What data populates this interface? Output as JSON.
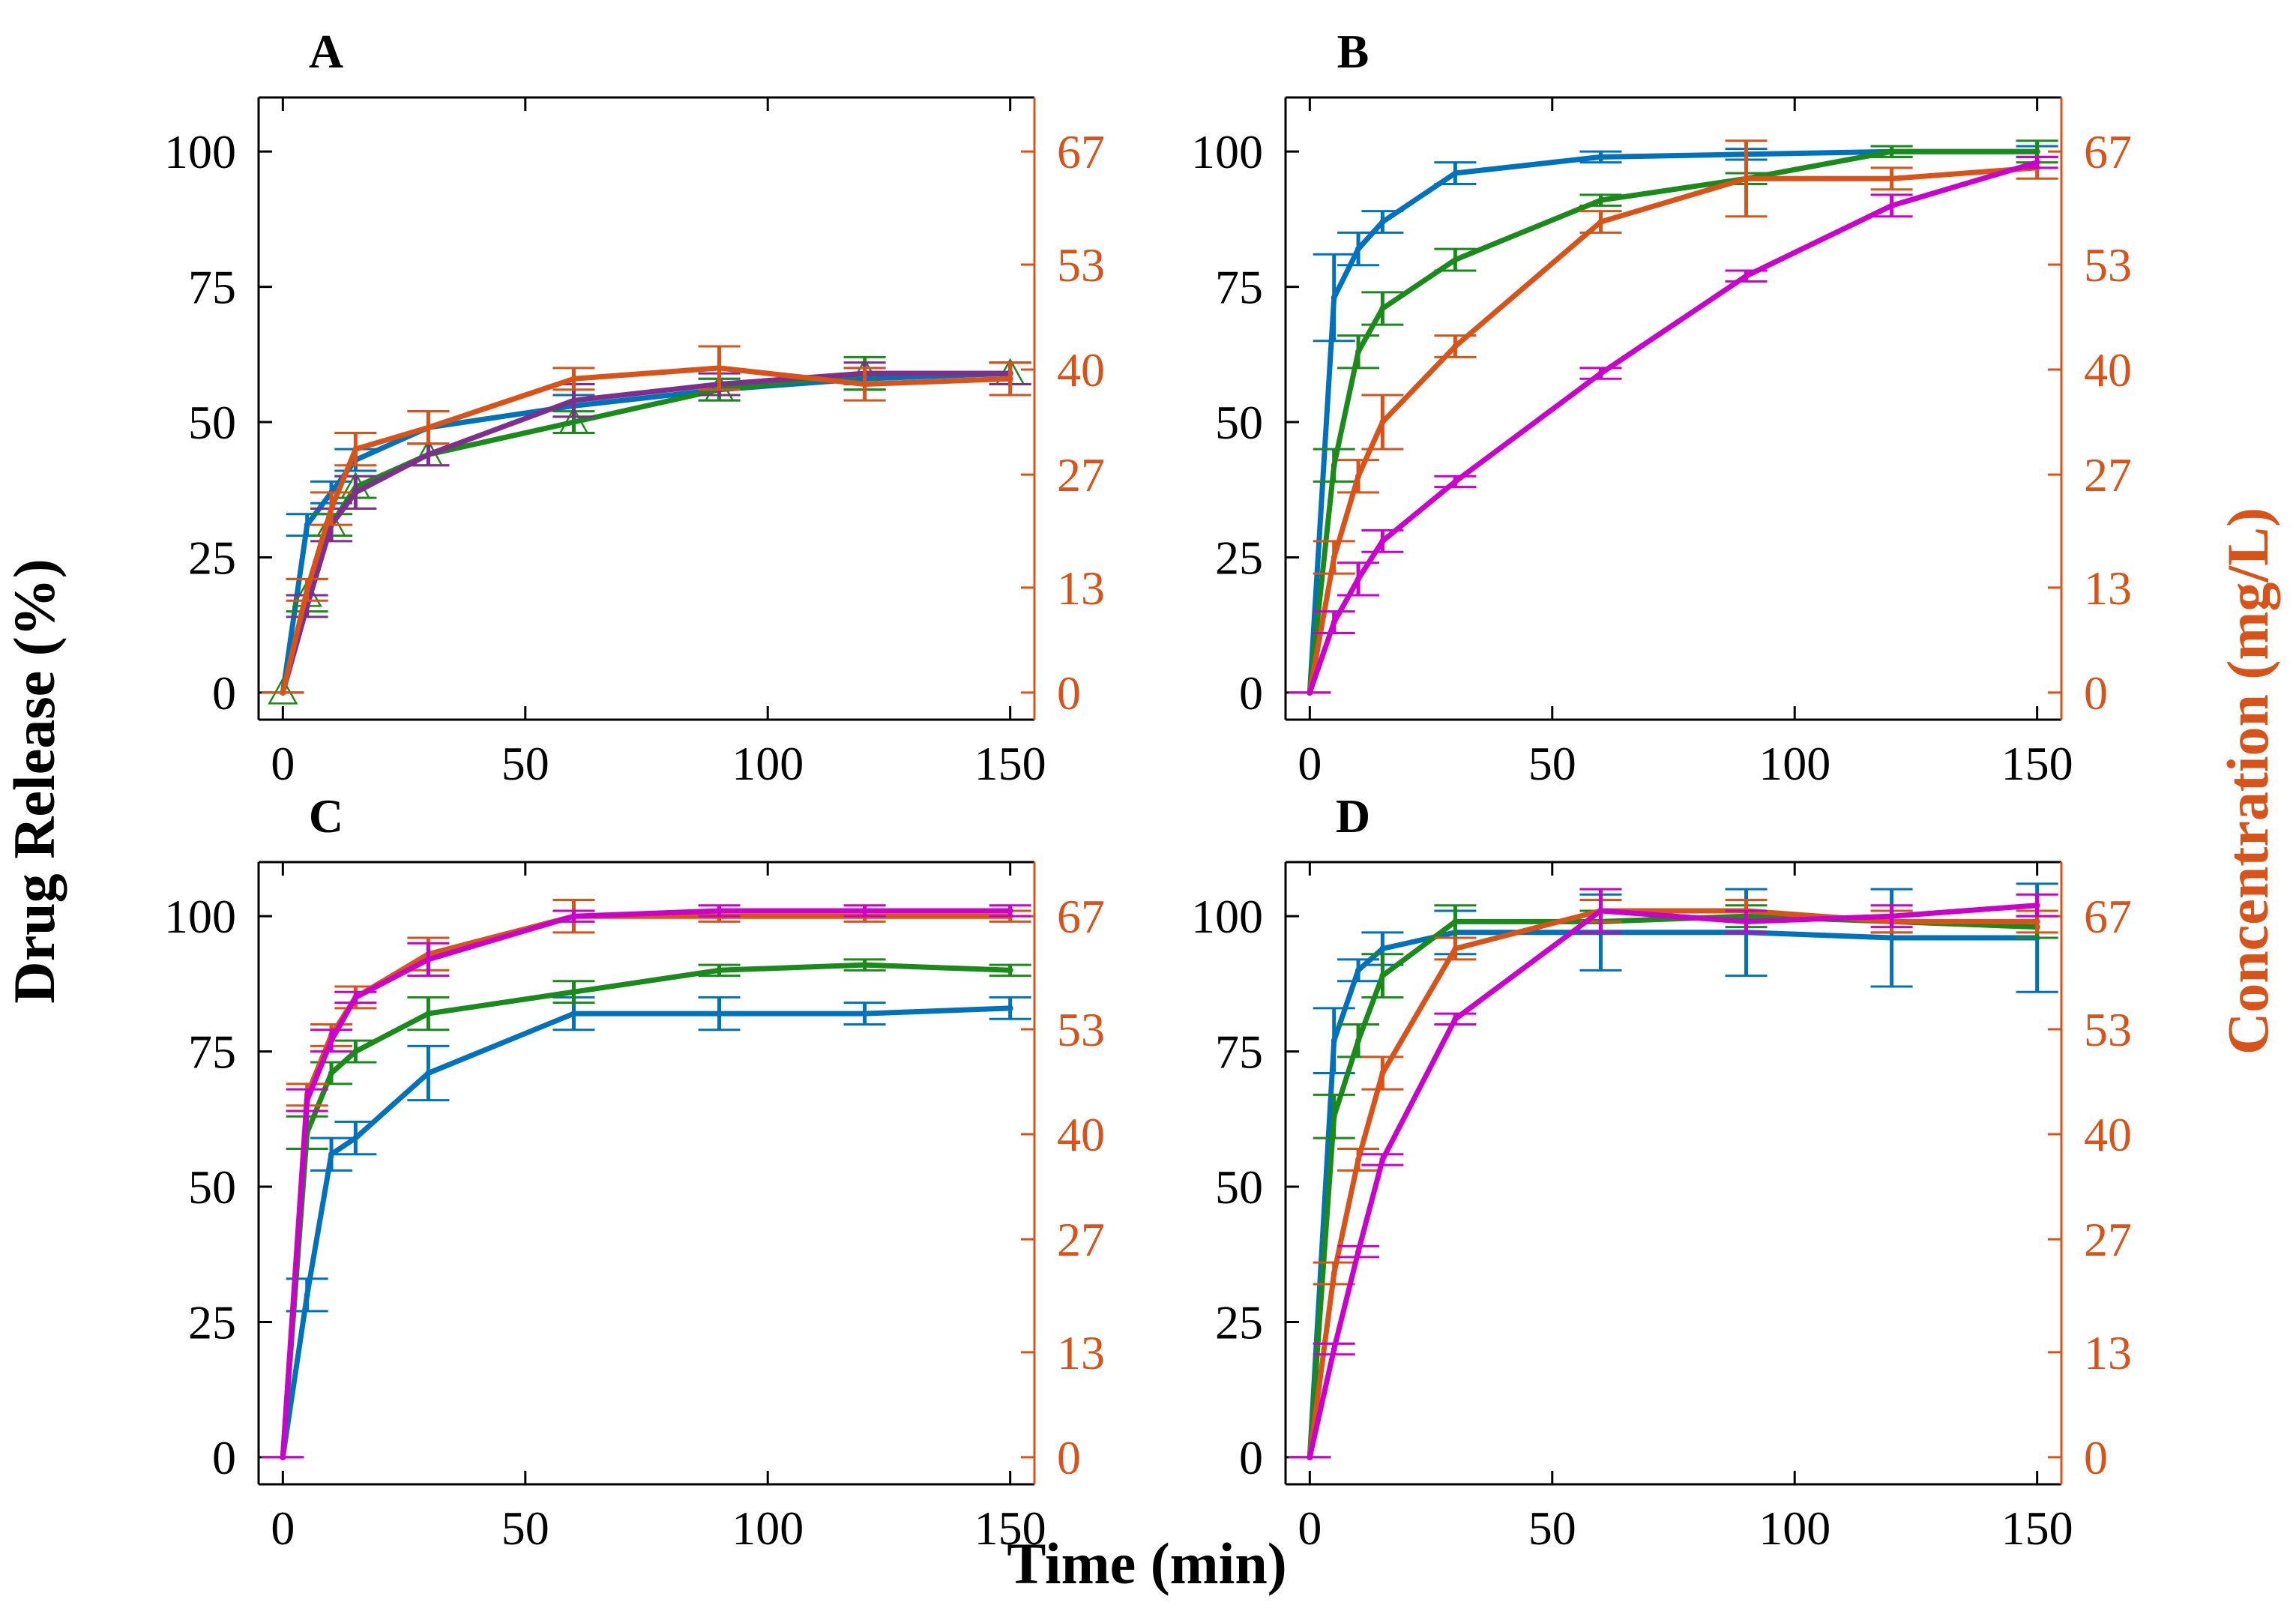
{
  "figure": {
    "xlabel": "Time (min)",
    "ylabel_left": "Drug Release (%)",
    "ylabel_right": "Concentration (mg/L)",
    "colors": {
      "axis": "#000000",
      "right_axis": "#d95319",
      "blue": "#0072bd",
      "orange": "#d95319",
      "green": "#1a8a1a",
      "magenta": "#cc00cc",
      "purple": "#7e2f8e"
    }
  },
  "chart_data": [
    {
      "type": "line",
      "panel": "A",
      "title": "A",
      "xlim": [
        -5,
        155
      ],
      "ylim": [
        -5,
        110
      ],
      "xticks": [
        "0",
        "50",
        "100",
        "150"
      ],
      "yticks_left": [
        "0",
        "25",
        "50",
        "75",
        "100"
      ],
      "yticks_right": [
        "0",
        "13",
        "27",
        "40",
        "53",
        "67"
      ],
      "x": [
        0,
        5,
        10,
        15,
        30,
        60,
        90,
        120,
        150
      ],
      "series": [
        {
          "name": "blue",
          "color": "#0072bd",
          "values": [
            0,
            31,
            37,
            43,
            49,
            53,
            56,
            58,
            59
          ],
          "errors": [
            0,
            2,
            2,
            2,
            3,
            2,
            2,
            2,
            2
          ]
        },
        {
          "name": "green",
          "color": "#1a8a1a",
          "marker": "triangle",
          "values": [
            0,
            18,
            31,
            38,
            44,
            50,
            56,
            59,
            59
          ],
          "errors": [
            0,
            3,
            2,
            2,
            2,
            2,
            2,
            3,
            2
          ]
        },
        {
          "name": "purple",
          "color": "#7e2f8e",
          "values": [
            0,
            16,
            31,
            37,
            44,
            54,
            57,
            59,
            59
          ],
          "errors": [
            0,
            2,
            3,
            3,
            2,
            3,
            2,
            2,
            2
          ]
        },
        {
          "name": "orange",
          "color": "#d95319",
          "values": [
            0,
            19,
            34,
            45,
            49,
            58,
            60,
            57,
            58
          ],
          "errors": [
            0,
            2,
            3,
            3,
            3,
            2,
            4,
            3,
            3
          ]
        }
      ]
    },
    {
      "type": "line",
      "panel": "B",
      "title": "B",
      "xlim": [
        -5,
        155
      ],
      "ylim": [
        -5,
        110
      ],
      "xticks": [
        "0",
        "50",
        "100",
        "150"
      ],
      "yticks_left": [
        "0",
        "25",
        "50",
        "75",
        "100"
      ],
      "yticks_right": [
        "0",
        "13",
        "27",
        "40",
        "53",
        "67"
      ],
      "x": [
        0,
        5,
        10,
        15,
        30,
        60,
        90,
        120,
        150
      ],
      "series": [
        {
          "name": "blue",
          "color": "#0072bd",
          "values": [
            0,
            73,
            82,
            87,
            96,
            99,
            99.5,
            100,
            100
          ],
          "errors": [
            0,
            8,
            3,
            2,
            2,
            1,
            1,
            1,
            1
          ]
        },
        {
          "name": "green",
          "color": "#1a8a1a",
          "values": [
            0,
            42,
            63,
            71,
            80,
            91,
            95,
            100,
            100
          ],
          "errors": [
            0,
            3,
            3,
            3,
            2,
            1,
            1,
            1,
            2
          ]
        },
        {
          "name": "orange",
          "color": "#d95319",
          "values": [
            0,
            25,
            40,
            50,
            64,
            87,
            95,
            95,
            97
          ],
          "errors": [
            0,
            3,
            3,
            5,
            2,
            2,
            7,
            2,
            2
          ]
        },
        {
          "name": "magenta",
          "color": "#cc00cc",
          "values": [
            0,
            13,
            21,
            28,
            39,
            59,
            77,
            90,
            98
          ],
          "errors": [
            0,
            2,
            3,
            2,
            1,
            1,
            1,
            2,
            1
          ]
        }
      ]
    },
    {
      "type": "line",
      "panel": "C",
      "title": "C",
      "xlim": [
        -5,
        155
      ],
      "ylim": [
        -5,
        110
      ],
      "xticks": [
        "0",
        "50",
        "100",
        "150"
      ],
      "yticks_left": [
        "0",
        "25",
        "50",
        "75",
        "100"
      ],
      "yticks_right": [
        "0",
        "13",
        "27",
        "40",
        "53",
        "67"
      ],
      "x": [
        0,
        5,
        10,
        15,
        30,
        60,
        90,
        120,
        150
      ],
      "series": [
        {
          "name": "blue",
          "color": "#0072bd",
          "values": [
            0,
            30,
            56,
            59,
            71,
            82,
            82,
            82,
            83
          ],
          "errors": [
            0,
            3,
            3,
            3,
            5,
            3,
            3,
            2,
            2
          ]
        },
        {
          "name": "green",
          "color": "#1a8a1a",
          "values": [
            0,
            60,
            71,
            75,
            82,
            86,
            90,
            91,
            90
          ],
          "errors": [
            0,
            3,
            2,
            2,
            3,
            2,
            1,
            1,
            1
          ]
        },
        {
          "name": "orange",
          "color": "#d95319",
          "values": [
            0,
            67,
            78,
            85,
            93,
            100,
            100,
            100,
            100
          ],
          "errors": [
            0,
            2,
            2,
            2,
            3,
            3,
            1,
            1,
            1
          ]
        },
        {
          "name": "magenta",
          "color": "#cc00cc",
          "values": [
            0,
            66,
            77,
            85,
            92,
            100,
            101,
            101,
            101
          ],
          "errors": [
            0,
            2,
            2,
            1,
            3,
            1,
            1,
            1,
            1
          ]
        }
      ]
    },
    {
      "type": "line",
      "panel": "D",
      "title": "D",
      "xlim": [
        -5,
        155
      ],
      "ylim": [
        -5,
        110
      ],
      "xticks": [
        "0",
        "50",
        "100",
        "150"
      ],
      "yticks_left": [
        "0",
        "25",
        "50",
        "75",
        "100"
      ],
      "yticks_right": [
        "0",
        "13",
        "27",
        "40",
        "53",
        "67"
      ],
      "x": [
        0,
        5,
        10,
        15,
        30,
        60,
        90,
        120,
        150
      ],
      "series": [
        {
          "name": "blue",
          "color": "#0072bd",
          "values": [
            0,
            77,
            90,
            94,
            97,
            97,
            97,
            96,
            96
          ],
          "errors": [
            0,
            6,
            2,
            3,
            4,
            7,
            8,
            9,
            10
          ]
        },
        {
          "name": "green",
          "color": "#1a8a1a",
          "values": [
            0,
            63,
            77,
            89,
            99,
            99,
            100,
            99,
            98
          ],
          "errors": [
            0,
            4,
            3,
            4,
            3,
            2,
            2,
            2,
            2
          ]
        },
        {
          "name": "orange",
          "color": "#d95319",
          "values": [
            0,
            34,
            55,
            71,
            94,
            101,
            101,
            99,
            99
          ],
          "errors": [
            0,
            2,
            2,
            3,
            2,
            2,
            2,
            2,
            2
          ]
        },
        {
          "name": "magenta",
          "color": "#cc00cc",
          "values": [
            0,
            20,
            38,
            55,
            81,
            101,
            99,
            100,
            102
          ],
          "errors": [
            0,
            1,
            1,
            1,
            1,
            4,
            2,
            2,
            2
          ]
        }
      ]
    }
  ]
}
